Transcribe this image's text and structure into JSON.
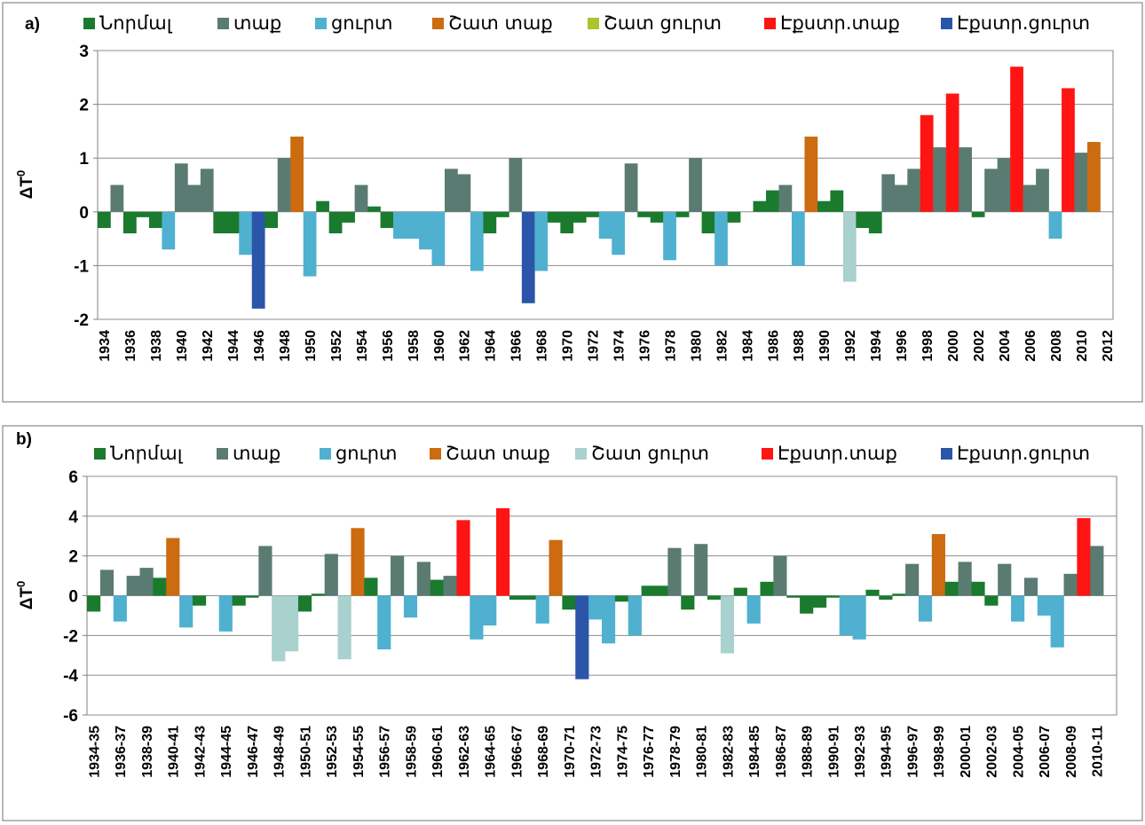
{
  "colors": {
    "normal": "#1a7a2e",
    "warm": "#5a7b72",
    "cold": "#4fb1cf",
    "very_warm": "#cc6b10",
    "very_cold_a": "#a9c62a",
    "very_cold_b": "#a9d1cd",
    "extreme_warm": "#ff1414",
    "extreme_cold": "#2b55a8"
  },
  "chart_data": [
    {
      "type": "bar",
      "panel_label": "a)",
      "ylabel": "ΔT",
      "ylabel_sup": "0",
      "ylim": [
        -2,
        3
      ],
      "yticks": [
        "-2",
        "-1",
        "0",
        "1",
        "2",
        "3"
      ],
      "grid": true,
      "legend_position": "top",
      "legend": [
        {
          "key": "normal",
          "label": "Նորմալ"
        },
        {
          "key": "warm",
          "label": "տաք"
        },
        {
          "key": "cold",
          "label": "ցուրտ"
        },
        {
          "key": "very_warm",
          "label": "Շատ տաք"
        },
        {
          "key": "very_cold_a",
          "label": "Շատ ցուրտ"
        },
        {
          "key": "extreme_warm",
          "label": "Էքստր.տաք"
        },
        {
          "key": "extreme_cold",
          "label": "Էքստր.ցուրտ"
        }
      ],
      "tick_labels": [
        "1934",
        "1936",
        "1938",
        "1940",
        "1942",
        "1944",
        "1946",
        "1948",
        "1950",
        "1952",
        "1954",
        "1956",
        "1958",
        "1960",
        "1962",
        "1964",
        "1966",
        "1968",
        "1970",
        "1972",
        "1974",
        "1976",
        "1978",
        "1980",
        "1982",
        "1984",
        "1986",
        "1988",
        "1990",
        "1992",
        "1994",
        "1996",
        "1998",
        "2000",
        "2002",
        "2004",
        "2006",
        "2008",
        "2010",
        "2012"
      ],
      "x": [
        1934,
        1935,
        1936,
        1937,
        1938,
        1939,
        1940,
        1941,
        1942,
        1943,
        1944,
        1945,
        1946,
        1947,
        1948,
        1949,
        1950,
        1951,
        1952,
        1953,
        1954,
        1955,
        1956,
        1957,
        1958,
        1959,
        1960,
        1961,
        1962,
        1963,
        1964,
        1965,
        1966,
        1967,
        1968,
        1969,
        1970,
        1971,
        1972,
        1973,
        1974,
        1975,
        1976,
        1977,
        1978,
        1979,
        1980,
        1981,
        1982,
        1983,
        1984,
        1985,
        1986,
        1987,
        1988,
        1989,
        1990,
        1991,
        1992,
        1993,
        1994,
        1995,
        1996,
        1997,
        1998,
        1999,
        2000,
        2001,
        2002,
        2003,
        2004,
        2005,
        2006,
        2007,
        2008,
        2009,
        2010,
        2011,
        2012
      ],
      "values": [
        -0.3,
        0.5,
        -0.4,
        -0.1,
        -0.3,
        -0.7,
        0.9,
        0.5,
        0.8,
        -0.4,
        -0.4,
        -0.8,
        -1.8,
        -0.3,
        1.0,
        1.4,
        -1.2,
        0.2,
        -0.4,
        -0.2,
        0.5,
        0.1,
        -0.3,
        -0.5,
        -0.5,
        -0.7,
        -1.0,
        0.8,
        0.7,
        -1.1,
        -0.4,
        -0.1,
        1.0,
        -1.7,
        -1.1,
        -0.2,
        -0.4,
        -0.2,
        -0.1,
        -0.5,
        -0.8,
        0.9,
        -0.1,
        -0.2,
        -0.9,
        -0.1,
        1.0,
        -0.4,
        -1.0,
        -0.2,
        0.0,
        0.2,
        0.4,
        0.5,
        -1.0,
        1.4,
        0.2,
        0.4,
        -1.3,
        -0.3,
        -0.4,
        0.7,
        0.5,
        0.8,
        1.8,
        1.2,
        2.2,
        1.2,
        -0.1,
        0.8,
        1.0,
        2.7,
        0.5,
        0.8,
        -0.5,
        2.3,
        1.1,
        1.3,
        0.0
      ],
      "categories": [
        "normal",
        "warm",
        "normal",
        "normal",
        "normal",
        "cold",
        "warm",
        "warm",
        "warm",
        "normal",
        "normal",
        "cold",
        "extreme_cold",
        "normal",
        "warm",
        "very_warm",
        "cold",
        "normal",
        "normal",
        "normal",
        "warm",
        "normal",
        "normal",
        "cold",
        "cold",
        "cold",
        "cold",
        "warm",
        "warm",
        "cold",
        "normal",
        "normal",
        "warm",
        "extreme_cold",
        "cold",
        "normal",
        "normal",
        "normal",
        "normal",
        "cold",
        "cold",
        "warm",
        "normal",
        "normal",
        "cold",
        "normal",
        "warm",
        "normal",
        "cold",
        "normal",
        "normal",
        "normal",
        "normal",
        "warm",
        "cold",
        "very_warm",
        "normal",
        "normal",
        "very_cold_b",
        "normal",
        "normal",
        "warm",
        "warm",
        "warm",
        "extreme_warm",
        "warm",
        "extreme_warm",
        "warm",
        "normal",
        "warm",
        "warm",
        "extreme_warm",
        "warm",
        "warm",
        "cold",
        "extreme_warm",
        "warm",
        "very_warm",
        "normal"
      ]
    },
    {
      "type": "bar",
      "panel_label": "b)",
      "ylabel": "ΔT",
      "ylabel_sup": "0",
      "ylim": [
        -6,
        6
      ],
      "yticks": [
        "-6",
        "-4",
        "-2",
        "0",
        "2",
        "4",
        "6"
      ],
      "grid": true,
      "legend_position": "top",
      "legend": [
        {
          "key": "normal",
          "label": "Նորմալ"
        },
        {
          "key": "warm",
          "label": "տաք"
        },
        {
          "key": "cold",
          "label": "ցուրտ"
        },
        {
          "key": "very_warm",
          "label": "Շատ տաք"
        },
        {
          "key": "very_cold_b",
          "label": "Շատ ցուրտ"
        },
        {
          "key": "extreme_warm",
          "label": "Էքստր.տաք"
        },
        {
          "key": "extreme_cold",
          "label": "Էքստր.ցուրտ"
        }
      ],
      "tick_labels": [
        "1934-35",
        "1936-37",
        "1938-39",
        "1940-41",
        "1942-43",
        "1944-45",
        "1946-47",
        "1948-49",
        "1950-51",
        "1952-53",
        "1954-55",
        "1956-57",
        "1958-59",
        "1960-61",
        "1962-63",
        "1964-65",
        "1966-67",
        "1968-69",
        "1970-71",
        "1972-73",
        "1974-75",
        "1976-77",
        "1978-79",
        "1980-81",
        "1982-83",
        "1984-85",
        "1986-87",
        "1988-89",
        "1990-91",
        "1992-93",
        "1994-95",
        "1996-97",
        "1998-99",
        "2000-01",
        "2002-03",
        "2004-05",
        "2006-07",
        "2008-09",
        "2010-11"
      ],
      "x": [
        "1934-35",
        "1935-36",
        "1936-37",
        "1937-38",
        "1938-39",
        "1939-40",
        "1940-41",
        "1941-42",
        "1942-43",
        "1943-44",
        "1944-45",
        "1945-46",
        "1946-47",
        "1947-48",
        "1948-49",
        "1949-50",
        "1950-51",
        "1951-52",
        "1952-53",
        "1953-54",
        "1954-55",
        "1955-56",
        "1956-57",
        "1957-58",
        "1958-59",
        "1959-60",
        "1960-61",
        "1961-62",
        "1962-63",
        "1963-64",
        "1964-65",
        "1965-66",
        "1966-67",
        "1967-68",
        "1968-69",
        "1969-70",
        "1970-71",
        "1971-72",
        "1972-73",
        "1973-74",
        "1974-75",
        "1975-76",
        "1976-77",
        "1977-78",
        "1978-79",
        "1979-80",
        "1980-81",
        "1981-82",
        "1982-83",
        "1983-84",
        "1984-85",
        "1985-86",
        "1986-87",
        "1987-88",
        "1988-89",
        "1989-90",
        "1990-91",
        "1991-92",
        "1992-93",
        "1993-94",
        "1994-95",
        "1995-96",
        "1996-97",
        "1997-98",
        "1998-99",
        "1999-00",
        "2000-01",
        "2001-02",
        "2002-03",
        "2003-04",
        "2004-05",
        "2005-06",
        "2006-07",
        "2007-08",
        "2008-09",
        "2009-10",
        "2010-11",
        "2011-12"
      ],
      "values": [
        -0.8,
        1.3,
        -1.3,
        1.0,
        1.4,
        0.9,
        2.9,
        -1.6,
        -0.5,
        0.0,
        -1.8,
        -0.5,
        -0.1,
        2.5,
        -3.3,
        -2.8,
        -0.8,
        0.1,
        2.1,
        -3.2,
        3.4,
        0.9,
        -2.7,
        2.0,
        -1.1,
        1.7,
        0.8,
        1.0,
        3.8,
        -2.2,
        -1.5,
        4.4,
        -0.2,
        -0.2,
        -1.4,
        2.8,
        -0.7,
        -4.2,
        -1.2,
        -2.4,
        -0.3,
        -2.0,
        0.5,
        0.5,
        2.4,
        -0.7,
        2.6,
        -0.2,
        -2.9,
        0.4,
        -1.4,
        0.7,
        2.0,
        -0.1,
        -0.9,
        -0.6,
        -0.1,
        -2.0,
        -2.2,
        0.3,
        -0.2,
        0.1,
        1.6,
        -1.3,
        3.1,
        0.7,
        1.7,
        0.7,
        -0.5,
        1.6,
        -1.3,
        0.9,
        -1.0,
        -2.6,
        1.1,
        3.9,
        2.5,
        0.0
      ],
      "categories": [
        "normal",
        "warm",
        "cold",
        "warm",
        "warm",
        "normal",
        "very_warm",
        "cold",
        "normal",
        "normal",
        "cold",
        "normal",
        "normal",
        "warm",
        "very_cold_b",
        "very_cold_b",
        "normal",
        "normal",
        "warm",
        "very_cold_b",
        "very_warm",
        "normal",
        "cold",
        "warm",
        "cold",
        "warm",
        "normal",
        "warm",
        "extreme_warm",
        "cold",
        "cold",
        "extreme_warm",
        "normal",
        "normal",
        "cold",
        "very_warm",
        "normal",
        "extreme_cold",
        "cold",
        "cold",
        "normal",
        "cold",
        "normal",
        "normal",
        "warm",
        "normal",
        "warm",
        "normal",
        "very_cold_b",
        "normal",
        "cold",
        "normal",
        "warm",
        "normal",
        "normal",
        "normal",
        "normal",
        "cold",
        "cold",
        "normal",
        "normal",
        "normal",
        "warm",
        "cold",
        "very_warm",
        "normal",
        "warm",
        "normal",
        "normal",
        "warm",
        "cold",
        "warm",
        "cold",
        "cold",
        "warm",
        "extreme_warm",
        "warm",
        "normal"
      ]
    }
  ]
}
